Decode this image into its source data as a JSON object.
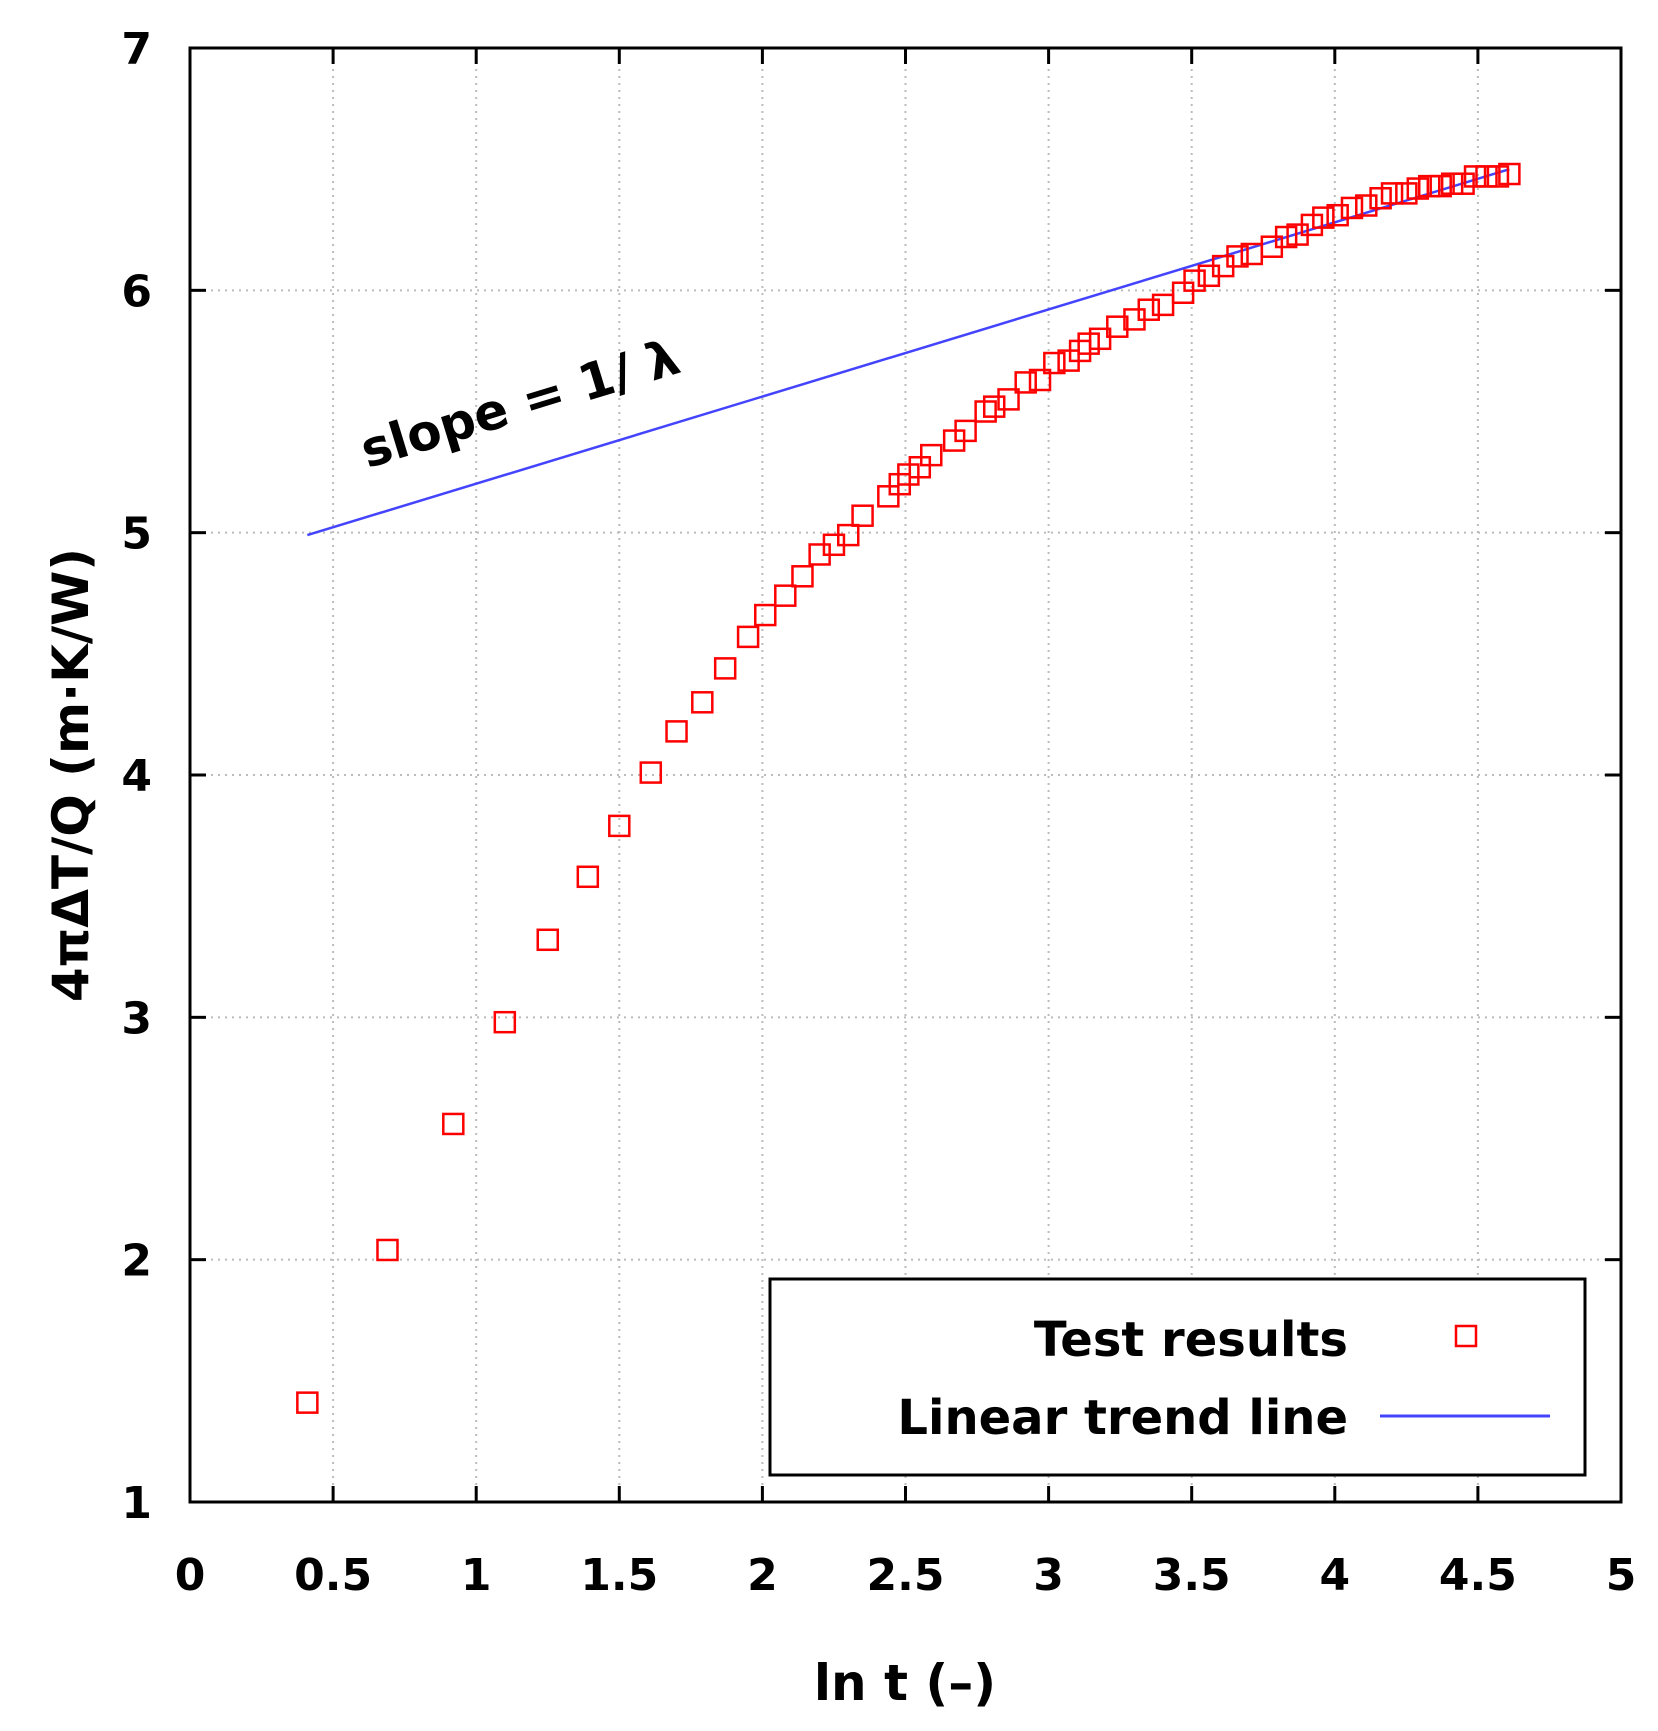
{
  "chart_data": {
    "type": "scatter",
    "title": "",
    "xlabel": "ln t (–)",
    "ylabel": "4πΔT/Q  (m·K/W)",
    "xlim": [
      0,
      5
    ],
    "ylim": [
      1,
      7
    ],
    "xticks": [
      0,
      0.5,
      1,
      1.5,
      2,
      2.5,
      3,
      3.5,
      4,
      4.5,
      5
    ],
    "xtick_labels": [
      "0",
      "0.5",
      "1",
      "1.5",
      "2",
      "2.5",
      "3",
      "3.5",
      "4",
      "4.5",
      "5"
    ],
    "yticks": [
      1,
      2,
      3,
      4,
      5,
      6,
      7
    ],
    "ytick_labels": [
      "1",
      "2",
      "3",
      "4",
      "5",
      "6",
      "7"
    ],
    "grid": true,
    "legend_position": "bottom-right",
    "series": [
      {
        "name": "Test results",
        "kind": "scatter",
        "marker": "open-square",
        "color": "#ff0000",
        "x": [
          0.41,
          0.69,
          0.92,
          1.1,
          1.25,
          1.39,
          1.5,
          1.61,
          1.7,
          1.79,
          1.87,
          1.95,
          2.01,
          2.08,
          2.14,
          2.2,
          2.25,
          2.3,
          2.35,
          2.44,
          2.48,
          2.51,
          2.55,
          2.59,
          2.67,
          2.71,
          2.78,
          2.81,
          2.86,
          2.92,
          2.97,
          3.02,
          3.07,
          3.11,
          3.14,
          3.18,
          3.24,
          3.3,
          3.35,
          3.4,
          3.47,
          3.51,
          3.56,
          3.61,
          3.66,
          3.71,
          3.78,
          3.83,
          3.87,
          3.92,
          3.96,
          4.01,
          4.06,
          4.11,
          4.16,
          4.2,
          4.25,
          4.29,
          4.33,
          4.37,
          4.41,
          4.45,
          4.49,
          4.53,
          4.57,
          4.61
        ],
        "y": [
          1.41,
          2.04,
          2.56,
          2.98,
          3.32,
          3.58,
          3.79,
          4.01,
          4.18,
          4.3,
          4.44,
          4.57,
          4.66,
          4.74,
          4.82,
          4.91,
          4.95,
          4.99,
          5.07,
          5.15,
          5.2,
          5.24,
          5.27,
          5.32,
          5.38,
          5.42,
          5.5,
          5.52,
          5.55,
          5.62,
          5.63,
          5.7,
          5.71,
          5.75,
          5.78,
          5.8,
          5.85,
          5.88,
          5.92,
          5.94,
          5.99,
          6.04,
          6.06,
          6.1,
          6.14,
          6.15,
          6.18,
          6.22,
          6.23,
          6.27,
          6.3,
          6.31,
          6.34,
          6.35,
          6.38,
          6.4,
          6.4,
          6.42,
          6.43,
          6.43,
          6.44,
          6.44,
          6.47,
          6.47,
          6.47,
          6.48
        ]
      },
      {
        "name": "Linear trend line",
        "kind": "line",
        "color": "#4444ff",
        "x": [
          0.41,
          4.61
        ],
        "y": [
          4.99,
          6.5
        ]
      }
    ],
    "annotations": [
      {
        "text": "slope = 1/ λ",
        "x": 1.25,
        "y": 5.55
      }
    ]
  }
}
